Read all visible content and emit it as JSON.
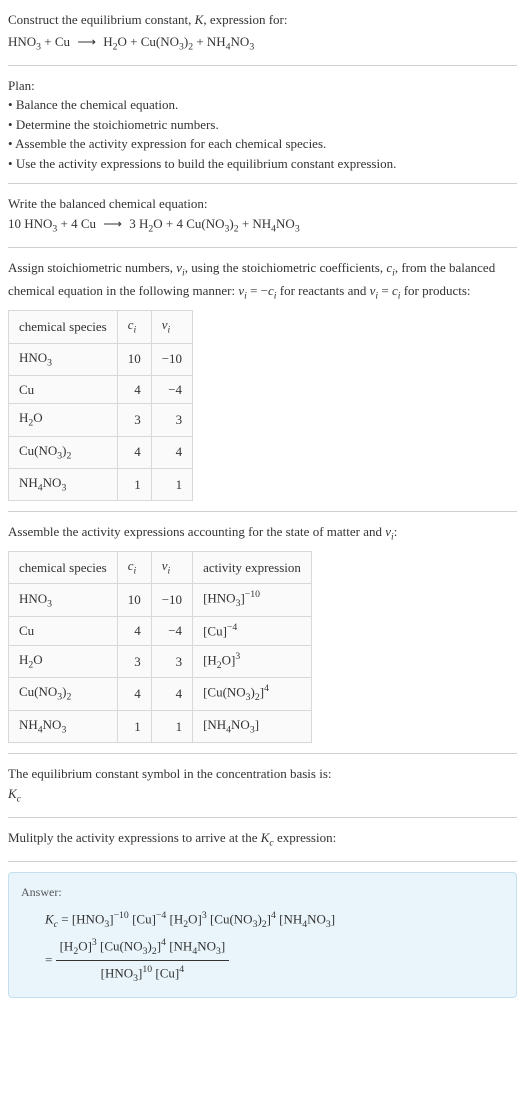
{
  "header": {
    "title_prefix": "Construct the equilibrium constant, ",
    "title_K": "K",
    "title_suffix": ", expression for:"
  },
  "unbalanced": {
    "r1": "HNO",
    "r1_sub": "3",
    "r2": " + Cu ",
    "arrow": "⟶",
    "p1": " H",
    "p1_sub": "2",
    "p2": "O + Cu(NO",
    "p2_sub1": "3",
    "p2_close": ")",
    "p2_sub2": "2",
    "p3": " + NH",
    "p3_sub1": "4",
    "p3_mid": "NO",
    "p3_sub2": "3"
  },
  "plan": {
    "label": "Plan:",
    "items": [
      "Balance the chemical equation.",
      "Determine the stoichiometric numbers.",
      "Assemble the activity expression for each chemical species.",
      "Use the activity expressions to build the equilibrium constant expression."
    ]
  },
  "balanced": {
    "intro": "Write the balanced chemical equation:",
    "formatted": {
      "c1": "10 HNO",
      "s1": "3",
      "c2": " + 4 Cu ",
      "arrow": "⟶",
      "c3": " 3 H",
      "s3": "2",
      "c4": "O + 4 Cu(NO",
      "s4a": "3",
      "c4b": ")",
      "s4b": "2",
      "c5": " + NH",
      "s5a": "4",
      "c5b": "NO",
      "s5b": "3"
    }
  },
  "stoich": {
    "intro_p1": "Assign stoichiometric numbers, ",
    "nu_i": "ν",
    "sub_i": "i",
    "intro_p2": ", using the stoichiometric coefficients, ",
    "c_i": "c",
    "intro_p3": ", from the balanced chemical equation in the following manner: ",
    "rel_reactants_a": " = −",
    "rel_for": " for reactants and ",
    "rel_products_a": " = ",
    "rel_prod": " for products:",
    "table": {
      "headers": [
        "chemical species",
        "c",
        "ν"
      ],
      "headers_sub": [
        "",
        "i",
        "i"
      ],
      "rows": [
        {
          "species_parts": [
            "HNO",
            "3"
          ],
          "c": "10",
          "nu": "−10"
        },
        {
          "species_parts": [
            "Cu",
            ""
          ],
          "c": "4",
          "nu": "−4"
        },
        {
          "species_parts": [
            "H",
            "2",
            "O"
          ],
          "c": "3",
          "nu": "3"
        },
        {
          "species_parts": [
            "Cu(NO",
            "3",
            ")",
            "2"
          ],
          "c": "4",
          "nu": "4"
        },
        {
          "species_parts": [
            "NH",
            "4",
            "NO",
            "3"
          ],
          "c": "1",
          "nu": "1"
        }
      ]
    }
  },
  "activity": {
    "intro_a": "Assemble the activity expressions accounting for the state of matter and ",
    "intro_b": ":",
    "table": {
      "headers": [
        "chemical species",
        "c",
        "ν",
        "activity expression"
      ],
      "headers_sub": [
        "",
        "i",
        "i",
        ""
      ],
      "rows": [
        {
          "sp": [
            "HNO",
            "3"
          ],
          "c": "10",
          "nu": "−10",
          "ae_base": [
            "[HNO",
            "3",
            "]"
          ],
          "ae_exp": "−10"
        },
        {
          "sp": [
            "Cu",
            ""
          ],
          "c": "4",
          "nu": "−4",
          "ae_base": [
            "[Cu]"
          ],
          "ae_exp": "−4"
        },
        {
          "sp": [
            "H",
            "2",
            "O"
          ],
          "c": "3",
          "nu": "3",
          "ae_base": [
            "[H",
            "2",
            "O]"
          ],
          "ae_exp": "3"
        },
        {
          "sp": [
            "Cu(NO",
            "3",
            ")",
            "2"
          ],
          "c": "4",
          "nu": "4",
          "ae_base": [
            "[Cu(NO",
            "3",
            ")",
            "2",
            "]"
          ],
          "ae_exp": "4"
        },
        {
          "sp": [
            "NH",
            "4",
            "NO",
            "3"
          ],
          "c": "1",
          "nu": "1",
          "ae_base": [
            "[NH",
            "4",
            "NO",
            "3",
            "]"
          ],
          "ae_exp": ""
        }
      ]
    }
  },
  "basis": {
    "line1": "The equilibrium constant symbol in the concentration basis is:",
    "symbol": "K",
    "symbol_sub": "c"
  },
  "multiply": {
    "intro_a": "Mulitply the activity expressions to arrive at the ",
    "intro_b": " expression:"
  },
  "answer": {
    "label": "Answer:",
    "eq1": {
      "lhs_K": "K",
      "lhs_sub": "c",
      "eq": " = ",
      "t1": "[HNO",
      "t1s": "3",
      "t1c": "]",
      "t1e": "−10",
      "t2": " [Cu]",
      "t2e": "−4",
      "t3": " [H",
      "t3s": "2",
      "t3c": "O]",
      "t3e": "3",
      "t4": " [Cu(NO",
      "t4s1": "3",
      "t4c1": ")",
      "t4s2": "2",
      "t4c2": "]",
      "t4e": "4",
      "t5": " [NH",
      "t5s1": "4",
      "t5c": "NO",
      "t5s2": "3",
      "t5c2": "]"
    },
    "eq2": {
      "eq": "= ",
      "num": {
        "a": "[H",
        "as": "2",
        "ac": "O]",
        "ae": "3",
        "b": " [Cu(NO",
        "bs1": "3",
        "bc1": ")",
        "bs2": "2",
        "bc2": "]",
        "be": "4",
        "c": " [NH",
        "cs1": "4",
        "cc": "NO",
        "cs2": "3",
        "cc2": "]"
      },
      "den": {
        "a": "[HNO",
        "as": "3",
        "ac": "]",
        "ae": "10",
        "b": " [Cu]",
        "be": "4"
      }
    }
  },
  "style": {
    "bg": "#ffffff",
    "answer_bg": "#e9f5fb",
    "answer_border": "#c4e0ec",
    "hr": "#d0d0d0",
    "table_border": "#d8d8d8",
    "table_bg": "#fafafa",
    "text": "#333333",
    "body_font_size": 13
  }
}
